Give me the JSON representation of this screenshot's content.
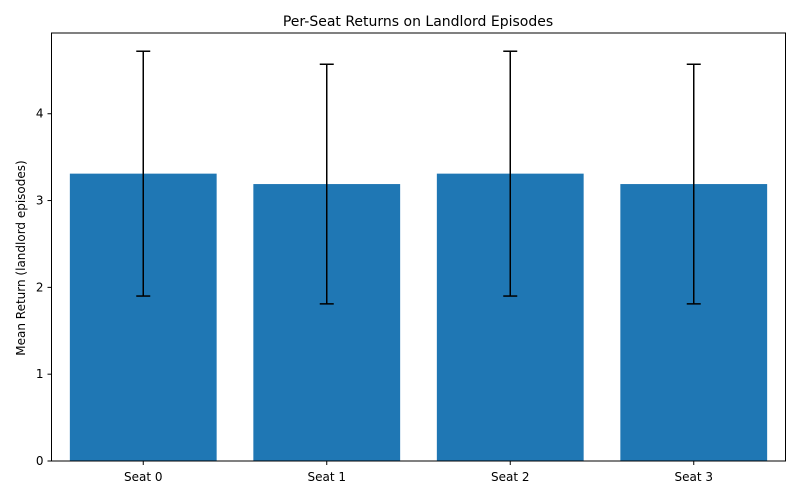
{
  "chart_data": {
    "type": "bar",
    "title": "Per-Seat Returns on Landlord Episodes",
    "xlabel": "",
    "ylabel": "Mean Return (landlord episodes)",
    "categories": [
      "Seat 0",
      "Seat 1",
      "Seat 2",
      "Seat 3"
    ],
    "values": [
      3.31,
      3.19,
      3.31,
      3.19
    ],
    "error_low": [
      1.9,
      1.81,
      1.9,
      1.81
    ],
    "error_high": [
      4.72,
      4.57,
      4.72,
      4.57
    ],
    "ylim": [
      0,
      4.93
    ],
    "yticks": [
      0,
      1,
      2,
      3,
      4
    ],
    "grid": false,
    "colors": {
      "bar": "#1f77b4",
      "error": "#000000",
      "axis": "#000000"
    }
  }
}
